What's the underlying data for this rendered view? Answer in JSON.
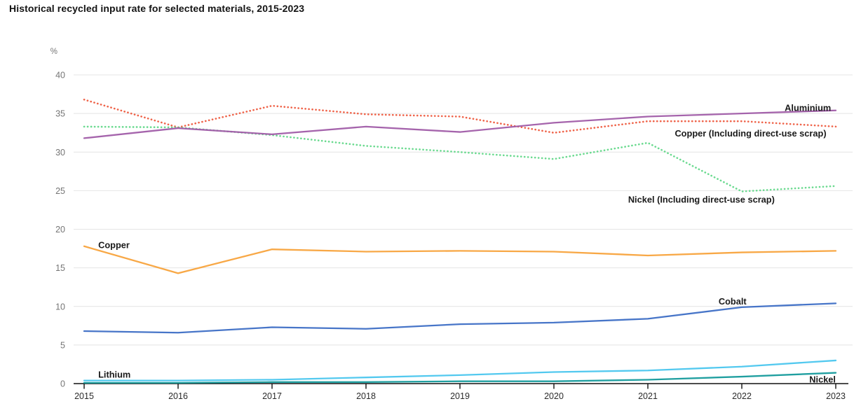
{
  "title": "Historical recycled input rate for selected materials, 2015-2023",
  "chart_data": {
    "type": "line",
    "title": "Historical recycled input rate for selected materials, 2015-2023",
    "ylabel": "%",
    "xlabel": "",
    "ylim": [
      0,
      40
    ],
    "yticks": [
      0,
      5,
      10,
      15,
      20,
      25,
      30,
      35,
      40
    ],
    "x": [
      2015,
      2016,
      2017,
      2018,
      2019,
      2020,
      2021,
      2022,
      2023
    ],
    "grid": true,
    "legend_position": "inline-labels",
    "series": [
      {
        "name": "Copper (Including direct-use scrap)",
        "values": [
          36.8,
          33.2,
          36.0,
          34.9,
          34.6,
          32.5,
          34.0,
          34.0,
          33.3
        ],
        "color": "#ee5b3f",
        "line_style": "dotted"
      },
      {
        "name": "Nickel (Including direct-use scrap)",
        "values": [
          33.3,
          33.2,
          32.2,
          30.8,
          30.0,
          29.1,
          31.2,
          24.9,
          25.6
        ],
        "color": "#62d889",
        "line_style": "dotted"
      },
      {
        "name": "Aluminium",
        "values": [
          31.8,
          33.1,
          32.3,
          33.3,
          32.6,
          33.8,
          34.6,
          35.0,
          35.4
        ],
        "color": "#a05ca8",
        "line_style": "solid"
      },
      {
        "name": "Copper",
        "values": [
          17.8,
          14.3,
          17.4,
          17.1,
          17.2,
          17.1,
          16.6,
          17.0,
          17.2
        ],
        "color": "#f8a33c",
        "line_style": "solid"
      },
      {
        "name": "Cobalt",
        "values": [
          6.8,
          6.6,
          7.3,
          7.1,
          7.7,
          7.9,
          8.4,
          9.9,
          10.4
        ],
        "color": "#3d6ec5",
        "line_style": "solid"
      },
      {
        "name": "Lithium",
        "values": [
          0.4,
          0.4,
          0.5,
          0.8,
          1.1,
          1.5,
          1.7,
          2.2,
          3.0
        ],
        "color": "#4ac6ee",
        "line_style": "solid"
      },
      {
        "name": "Nickel",
        "values": [
          0.1,
          0.1,
          0.2,
          0.2,
          0.3,
          0.3,
          0.5,
          0.9,
          1.4
        ],
        "color": "#149a9b",
        "line_style": "solid"
      }
    ],
    "annotations": [
      {
        "text": "Aluminium",
        "year": 2022.95,
        "value": 35.7,
        "anchor": "end"
      },
      {
        "text": "Copper (Including direct-use scrap)",
        "year": 2022.9,
        "value": 32.4,
        "anchor": "end"
      },
      {
        "text": "Nickel (Including direct-use scrap)",
        "year": 2022.35,
        "value": 23.8,
        "anchor": "end"
      },
      {
        "text": "Copper",
        "year": 2015.15,
        "value": 17.9,
        "anchor": "start"
      },
      {
        "text": "Cobalt",
        "year": 2022.05,
        "value": 10.6,
        "anchor": "end"
      },
      {
        "text": "Lithium",
        "year": 2015.15,
        "value": 1.15,
        "anchor": "start"
      },
      {
        "text": "Nickel",
        "year": 2023.0,
        "value": 0.5,
        "anchor": "end"
      }
    ],
    "colors": {
      "grid": "#e4e4e4",
      "axis": "#111111",
      "tick_label": "#757575",
      "x_tick_label": "#2b2b2b",
      "annotation_label": "#1a1a1a",
      "title": "#141414"
    }
  }
}
